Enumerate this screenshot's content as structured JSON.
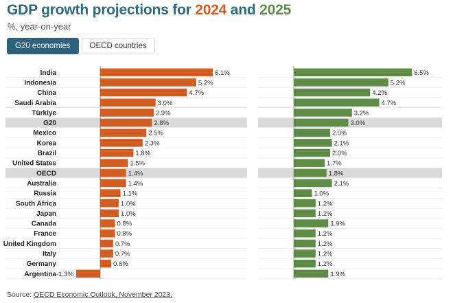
{
  "title": {
    "prefix": "GDP growth projections for ",
    "year1": "2024",
    "mid": " and ",
    "year2": "2025"
  },
  "subtitle": "%, year-on-year",
  "tabs": [
    {
      "label": "G20 economies",
      "active": true
    },
    {
      "label": "OECD countries",
      "active": false
    }
  ],
  "source": {
    "label": "Source:",
    "link_text": "OECD Economic Outlook, November 2023."
  },
  "colors": {
    "series_2024": "#d25d22",
    "series_2025": "#5e8c47",
    "highlight_row": "#d9d9d9",
    "title_accent": "#2d6a7d"
  },
  "chart_data": {
    "type": "bar",
    "orientation": "horizontal",
    "categories": [
      "India",
      "Indonesia",
      "China",
      "Saudi Arabia",
      "Türkiye",
      "G20",
      "Mexico",
      "Korea",
      "Brazil",
      "United States",
      "OECD",
      "Australia",
      "Russia",
      "South Africa",
      "Japan",
      "Canada",
      "France",
      "United Kingdom",
      "Italy",
      "Germany",
      "Argentina"
    ],
    "highlighted_categories": [
      "G20",
      "OECD"
    ],
    "series": [
      {
        "name": "2024",
        "values": [
          6.1,
          5.2,
          4.7,
          3.0,
          2.9,
          2.8,
          2.5,
          2.3,
          1.8,
          1.5,
          1.4,
          1.4,
          1.1,
          1.0,
          1.0,
          0.8,
          0.8,
          0.7,
          0.7,
          0.6,
          -1.3
        ],
        "labels": [
          "6.1%",
          "5.2%",
          "4.7%",
          "3.0%",
          "2.9%",
          "2.8%",
          "2.5%",
          "2.3%",
          "1.8%",
          "1.5%",
          "1.4%",
          "1.4%",
          "1.1%",
          "1.0%",
          "1.0%",
          "0.8%",
          "0.8%",
          "0.7%",
          "0.7%",
          "0.6%",
          "-1.3%"
        ]
      },
      {
        "name": "2025",
        "values": [
          6.5,
          5.2,
          4.2,
          4.7,
          3.2,
          3.0,
          2.0,
          2.1,
          2.0,
          1.7,
          1.8,
          2.1,
          1.0,
          1.2,
          1.2,
          1.9,
          1.2,
          1.2,
          1.2,
          1.2,
          1.9
        ],
        "labels": [
          "6.5%",
          "5.2%",
          "4.2%",
          "4.7%",
          "3.2%",
          "3.0%",
          "2.0%",
          "2.1%",
          "2.0%",
          "1.7%",
          "1.8%",
          "2.1%",
          "1.0%",
          "1.2%",
          "1.2%",
          "1.9%",
          "1.2%",
          "1.2%",
          "1.2%",
          "1.2%",
          "1.9%"
        ]
      }
    ],
    "xlim": [
      -1.3,
      6.5
    ],
    "grid": true,
    "legend": "title"
  }
}
